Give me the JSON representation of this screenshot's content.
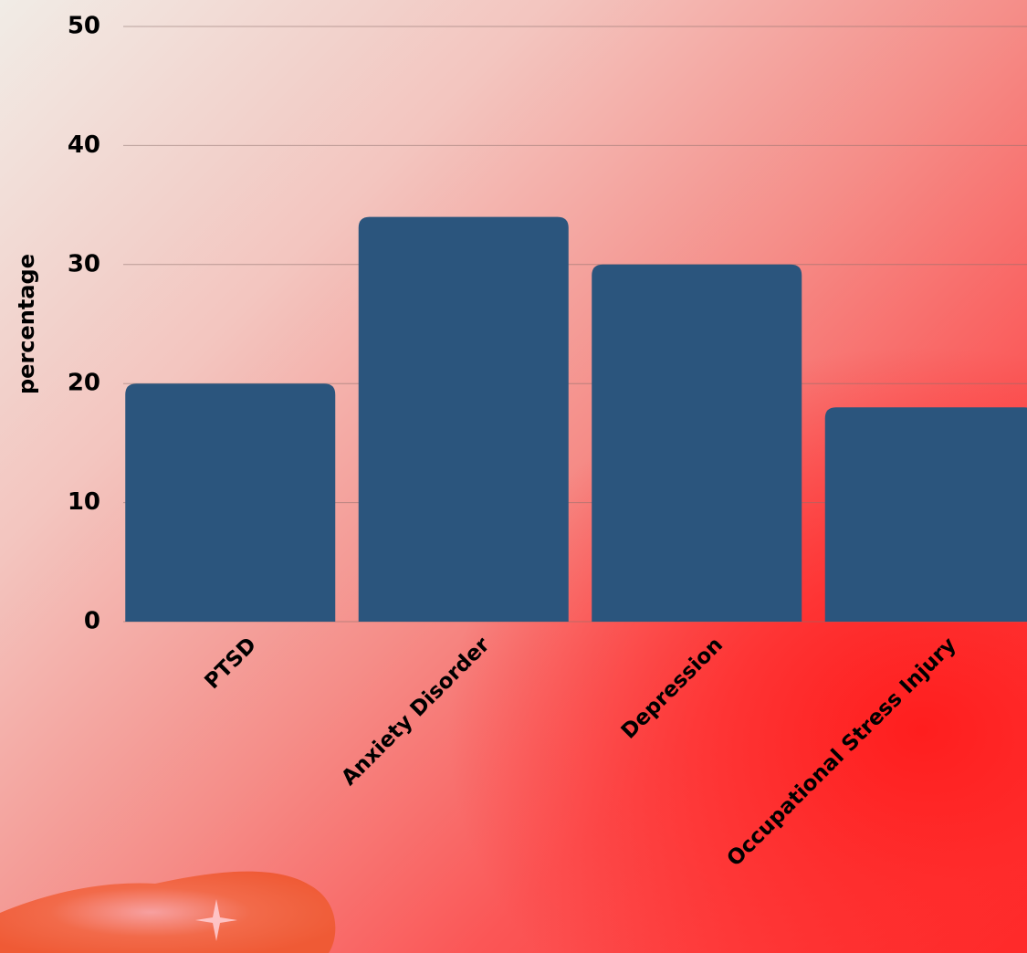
{
  "chart_data": {
    "type": "bar",
    "y_label": "percentage",
    "categories": [
      "PTSD",
      "Anxiety Disorder",
      "Depression",
      "Occupational Stress Injury"
    ],
    "values": [
      20,
      34,
      30,
      18
    ],
    "color": "#2b557d",
    "ylim": [
      0,
      50
    ],
    "yticks": [
      0,
      10,
      20,
      30,
      40,
      50
    ],
    "grid": true
  }
}
